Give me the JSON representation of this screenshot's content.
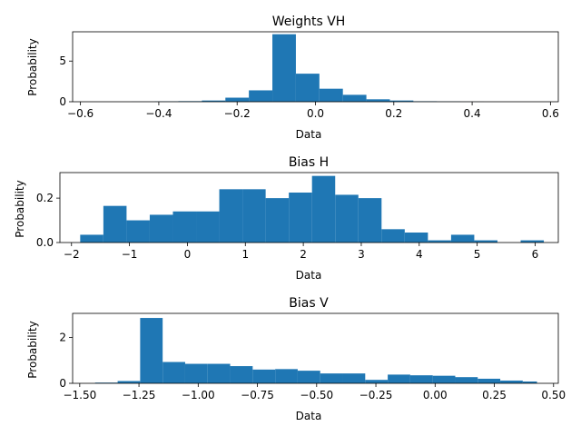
{
  "colors": {
    "bar": "#1f77b4",
    "axis": "#000000",
    "background": "#ffffff"
  },
  "chart_data": [
    {
      "type": "bar",
      "subtype": "histogram",
      "title": "Weights VH",
      "xlabel": "Data",
      "ylabel": "Probability",
      "xlim": [
        -0.62,
        0.62
      ],
      "ylim": [
        0,
        8.6
      ],
      "xticks": [
        -0.6,
        -0.4,
        -0.2,
        0.0,
        0.2,
        0.4,
        0.6
      ],
      "xtick_labels": [
        "−0.6",
        "−0.4",
        "−0.2",
        "0.0",
        "0.2",
        "0.4",
        "0.6"
      ],
      "yticks": [
        0,
        5
      ],
      "ytick_labels": [
        "0",
        "5"
      ],
      "bins": [
        {
          "x0": -0.59,
          "x1": -0.53,
          "value": 0.0
        },
        {
          "x0": -0.53,
          "x1": -0.47,
          "value": 0.0
        },
        {
          "x0": -0.47,
          "x1": -0.41,
          "value": 0.01
        },
        {
          "x0": -0.41,
          "x1": -0.35,
          "value": 0.04
        },
        {
          "x0": -0.35,
          "x1": -0.29,
          "value": 0.07
        },
        {
          "x0": -0.29,
          "x1": -0.23,
          "value": 0.15
        },
        {
          "x0": -0.23,
          "x1": -0.17,
          "value": 0.5
        },
        {
          "x0": -0.17,
          "x1": -0.11,
          "value": 1.4
        },
        {
          "x0": -0.11,
          "x1": -0.05,
          "value": 8.3
        },
        {
          "x0": -0.05,
          "x1": 0.01,
          "value": 3.45
        },
        {
          "x0": 0.01,
          "x1": 0.07,
          "value": 1.6
        },
        {
          "x0": 0.07,
          "x1": 0.13,
          "value": 0.85
        },
        {
          "x0": 0.13,
          "x1": 0.19,
          "value": 0.3
        },
        {
          "x0": 0.19,
          "x1": 0.25,
          "value": 0.15
        },
        {
          "x0": 0.25,
          "x1": 0.31,
          "value": 0.06
        },
        {
          "x0": 0.31,
          "x1": 0.37,
          "value": 0.03
        },
        {
          "x0": 0.37,
          "x1": 0.43,
          "value": 0.01
        },
        {
          "x0": 0.43,
          "x1": 0.49,
          "value": 0.0
        },
        {
          "x0": 0.49,
          "x1": 0.55,
          "value": 0.0
        },
        {
          "x0": 0.55,
          "x1": 0.61,
          "value": 0.0
        }
      ]
    },
    {
      "type": "bar",
      "subtype": "histogram",
      "title": "Bias H",
      "xlabel": "Data",
      "ylabel": "Probability",
      "xlim": [
        -2.2,
        6.4
      ],
      "ylim": [
        0,
        0.315
      ],
      "xticks": [
        -2,
        -1,
        0,
        1,
        2,
        3,
        4,
        5,
        6
      ],
      "xtick_labels": [
        "−2",
        "−1",
        "0",
        "1",
        "2",
        "3",
        "4",
        "5",
        "6"
      ],
      "yticks": [
        0.0,
        0.2
      ],
      "ytick_labels": [
        "0.0",
        "0.2"
      ],
      "bins": [
        {
          "x0": -1.85,
          "x1": -1.45,
          "value": 0.035
        },
        {
          "x0": -1.45,
          "x1": -1.05,
          "value": 0.165
        },
        {
          "x0": -1.05,
          "x1": -0.65,
          "value": 0.1
        },
        {
          "x0": -0.65,
          "x1": -0.25,
          "value": 0.125
        },
        {
          "x0": -0.25,
          "x1": 0.15,
          "value": 0.14
        },
        {
          "x0": 0.15,
          "x1": 0.55,
          "value": 0.14
        },
        {
          "x0": 0.55,
          "x1": 0.95,
          "value": 0.24
        },
        {
          "x0": 0.95,
          "x1": 1.35,
          "value": 0.24
        },
        {
          "x0": 1.35,
          "x1": 1.75,
          "value": 0.2
        },
        {
          "x0": 1.75,
          "x1": 2.15,
          "value": 0.225
        },
        {
          "x0": 2.15,
          "x1": 2.55,
          "value": 0.3
        },
        {
          "x0": 2.55,
          "x1": 2.95,
          "value": 0.215
        },
        {
          "x0": 2.95,
          "x1": 3.35,
          "value": 0.2
        },
        {
          "x0": 3.35,
          "x1": 3.75,
          "value": 0.06
        },
        {
          "x0": 3.75,
          "x1": 4.15,
          "value": 0.045
        },
        {
          "x0": 4.15,
          "x1": 4.55,
          "value": 0.01
        },
        {
          "x0": 4.55,
          "x1": 4.95,
          "value": 0.035
        },
        {
          "x0": 4.95,
          "x1": 5.35,
          "value": 0.01
        },
        {
          "x0": 5.35,
          "x1": 5.75,
          "value": 0.0
        },
        {
          "x0": 5.75,
          "x1": 6.15,
          "value": 0.01
        }
      ]
    },
    {
      "type": "bar",
      "subtype": "histogram",
      "title": "Bias V",
      "xlabel": "Data",
      "ylabel": "Probability",
      "xlim": [
        -1.53,
        0.52
      ],
      "ylim": [
        0,
        3.05
      ],
      "xticks": [
        -1.5,
        -1.25,
        -1.0,
        -0.75,
        -0.5,
        -0.25,
        0.0,
        0.25,
        0.5
      ],
      "xtick_labels": [
        "−1.50",
        "−1.25",
        "−1.00",
        "−0.75",
        "−0.50",
        "−0.25",
        "0.00",
        "0.25",
        "0.50"
      ],
      "yticks": [
        0,
        2
      ],
      "ytick_labels": [
        "0",
        "2"
      ],
      "bins": [
        {
          "x0": -1.435,
          "x1": -1.34,
          "value": 0.03
        },
        {
          "x0": -1.34,
          "x1": -1.245,
          "value": 0.1
        },
        {
          "x0": -1.245,
          "x1": -1.15,
          "value": 2.85
        },
        {
          "x0": -1.15,
          "x1": -1.055,
          "value": 0.93
        },
        {
          "x0": -1.055,
          "x1": -0.96,
          "value": 0.85
        },
        {
          "x0": -0.96,
          "x1": -0.865,
          "value": 0.85
        },
        {
          "x0": -0.865,
          "x1": -0.77,
          "value": 0.75
        },
        {
          "x0": -0.77,
          "x1": -0.675,
          "value": 0.6
        },
        {
          "x0": -0.675,
          "x1": -0.58,
          "value": 0.62
        },
        {
          "x0": -0.58,
          "x1": -0.485,
          "value": 0.55
        },
        {
          "x0": -0.485,
          "x1": -0.39,
          "value": 0.43
        },
        {
          "x0": -0.39,
          "x1": -0.295,
          "value": 0.43
        },
        {
          "x0": -0.295,
          "x1": -0.2,
          "value": 0.15
        },
        {
          "x0": -0.2,
          "x1": -0.105,
          "value": 0.38
        },
        {
          "x0": -0.105,
          "x1": -0.01,
          "value": 0.35
        },
        {
          "x0": -0.01,
          "x1": 0.085,
          "value": 0.33
        },
        {
          "x0": 0.085,
          "x1": 0.18,
          "value": 0.27
        },
        {
          "x0": 0.18,
          "x1": 0.275,
          "value": 0.2
        },
        {
          "x0": 0.275,
          "x1": 0.37,
          "value": 0.12
        },
        {
          "x0": 0.37,
          "x1": 0.43,
          "value": 0.08
        }
      ]
    }
  ]
}
